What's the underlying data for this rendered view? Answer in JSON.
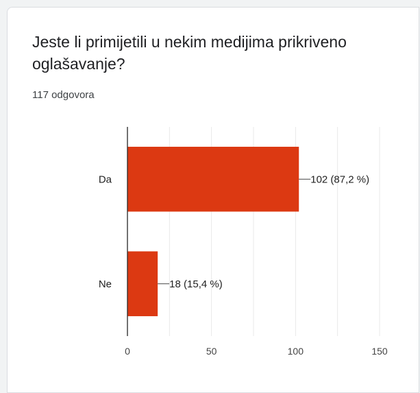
{
  "question": {
    "title": "Jeste li primijetili u nekim medijima prikriveno oglašavanje?",
    "response_count": "117 odgovora"
  },
  "chart_data": {
    "type": "bar",
    "orientation": "horizontal",
    "categories": [
      "Da",
      "Ne"
    ],
    "values": [
      102,
      18
    ],
    "data_labels": [
      "102 (87,2 %)",
      "18 (15,4 %)"
    ],
    "x_ticks": [
      0,
      50,
      100,
      150
    ],
    "xlim": [
      0,
      150
    ],
    "grid": true,
    "bar_color": "#dc3912",
    "title": "",
    "xlabel": "",
    "ylabel": ""
  }
}
